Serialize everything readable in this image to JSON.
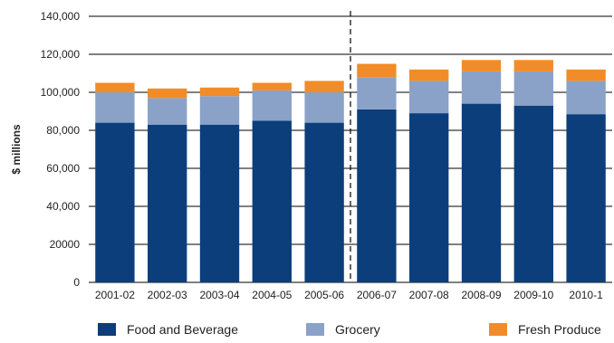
{
  "chart_data": {
    "type": "bar",
    "stacked": true,
    "title": "",
    "xlabel": "",
    "ylabel": "$ millions",
    "ylim": [
      0,
      140000
    ],
    "yticks": [
      0,
      20000,
      40000,
      60000,
      80000,
      100000,
      120000,
      140000
    ],
    "ytick_labels": [
      "0",
      "20000",
      "40,000",
      "60,000",
      "80,000",
      "100,000",
      "120,000",
      "140,000"
    ],
    "grid": "horizontal",
    "categories": [
      "2001-02",
      "2002-03",
      "2003-04",
      "2004-05",
      "2005-06",
      "2006-07",
      "2007-08",
      "2008-09",
      "2009-10",
      "2010-1"
    ],
    "divider_after": "2005-06",
    "series": [
      {
        "name": "Food and Beverage",
        "color": "#0b3e7a",
        "values": [
          84000,
          83000,
          83000,
          85000,
          84000,
          91000,
          89000,
          94000,
          93000,
          88500
        ]
      },
      {
        "name": "Grocery",
        "color": "#8aa2c8",
        "values": [
          16000,
          14000,
          15000,
          16000,
          16000,
          17000,
          17000,
          17000,
          18000,
          17500
        ]
      },
      {
        "name": "Fresh Produce",
        "color": "#f28c28",
        "values": [
          5000,
          5000,
          4500,
          4000,
          6000,
          7000,
          6000,
          6000,
          6000,
          6000
        ]
      }
    ],
    "legend_position": "bottom"
  }
}
